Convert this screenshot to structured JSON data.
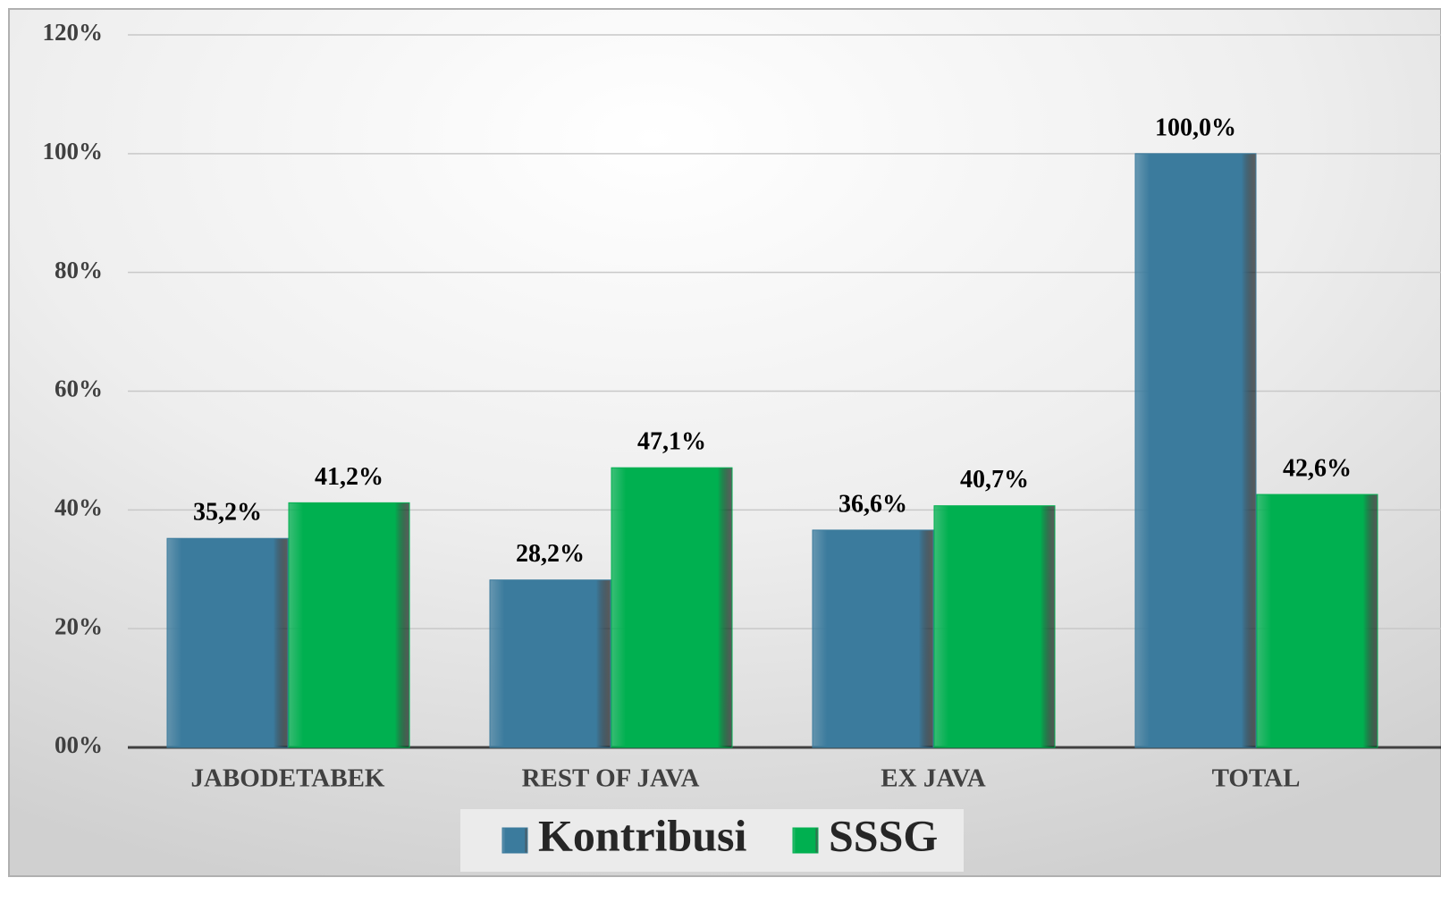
{
  "chart_data": {
    "type": "bar",
    "categories": [
      "JABODETABEK",
      "REST OF JAVA",
      "EX JAVA",
      "TOTAL"
    ],
    "series": [
      {
        "name": "Kontribusi",
        "color": "#3b7b9d",
        "values": [
          35.2,
          28.2,
          36.6,
          100.0
        ],
        "value_labels": [
          "35,2%",
          "28,2%",
          "36,6%",
          "100,0%"
        ]
      },
      {
        "name": "SSSG",
        "color": "#00b050",
        "values": [
          41.2,
          47.1,
          40.7,
          42.6
        ],
        "value_labels": [
          "41,2%",
          "47,1%",
          "40,7%",
          "42,6%"
        ]
      }
    ],
    "ylim": [
      0,
      120
    ],
    "yticks": [
      {
        "value": 0,
        "label": "00%"
      },
      {
        "value": 20,
        "label": "20%"
      },
      {
        "value": 40,
        "label": "40%"
      },
      {
        "value": 60,
        "label": "60%"
      },
      {
        "value": 80,
        "label": "80%"
      },
      {
        "value": 100,
        "label": "100%"
      },
      {
        "value": 120,
        "label": "120%"
      }
    ],
    "grid": true,
    "legend": "bottom"
  }
}
